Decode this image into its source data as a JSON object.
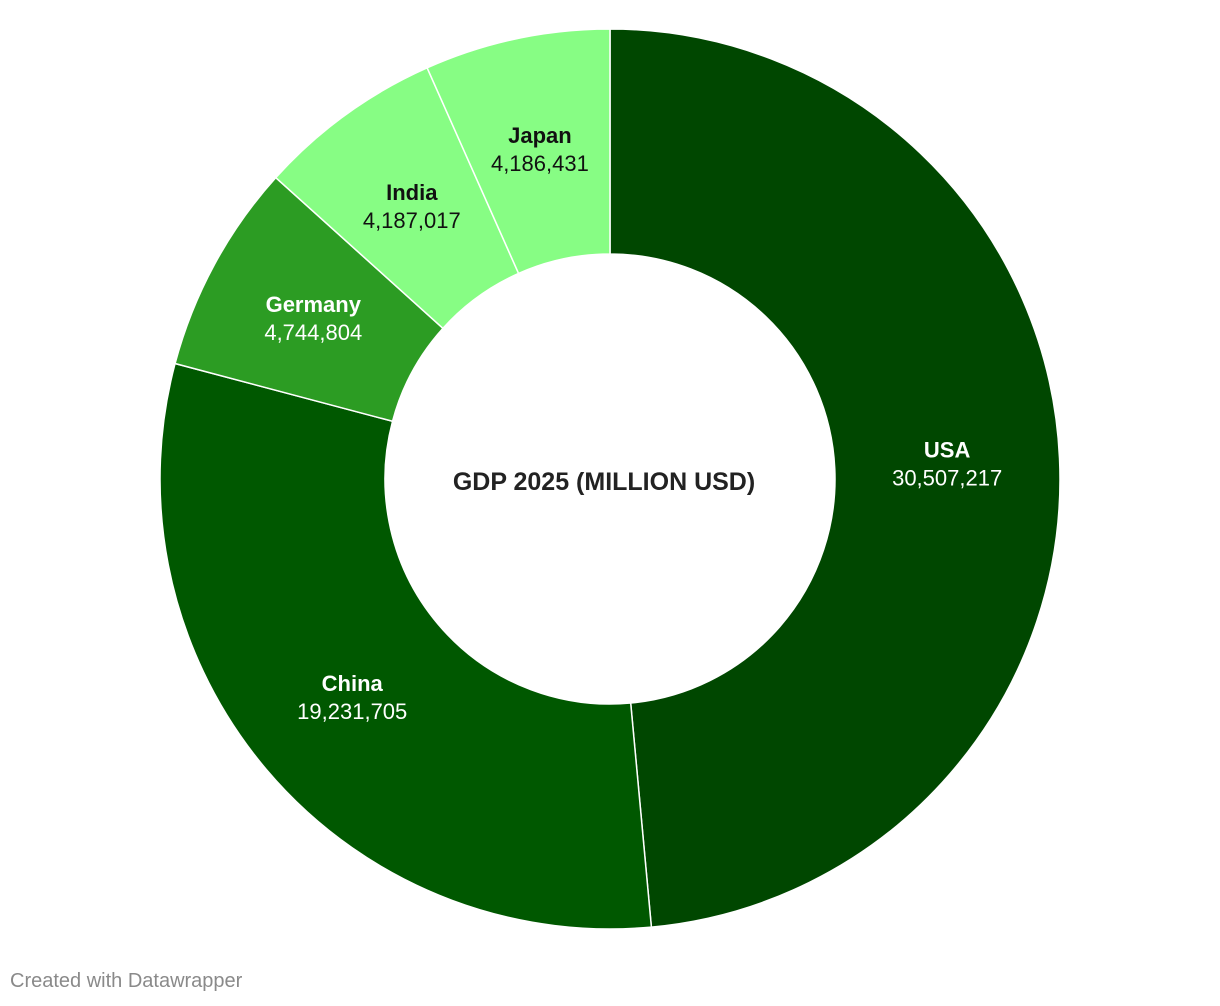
{
  "chart_data": {
    "type": "pie",
    "style": "donut",
    "center_title": "GDP 2025 (MILLION USD)",
    "slices": [
      {
        "label": "USA",
        "value": 30507217,
        "value_text": "30,507,217",
        "color": "#004700",
        "text_color": "#ffffff"
      },
      {
        "label": "China",
        "value": 19231705,
        "value_text": "19,231,705",
        "color": "#005800",
        "text_color": "#ffffff"
      },
      {
        "label": "Germany",
        "value": 4744804,
        "value_text": "4,744,804",
        "color": "#2c9c23",
        "text_color": "#ffffff"
      },
      {
        "label": "India",
        "value": 4187017,
        "value_text": "4,187,017",
        "color": "#87fd84",
        "text_color": "#111111"
      },
      {
        "label": "Japan",
        "value": 4186431,
        "value_text": "4,186,431",
        "color": "#87fd84",
        "text_color": "#111111"
      }
    ]
  },
  "footer": {
    "credit": "Created with Datawrapper"
  }
}
